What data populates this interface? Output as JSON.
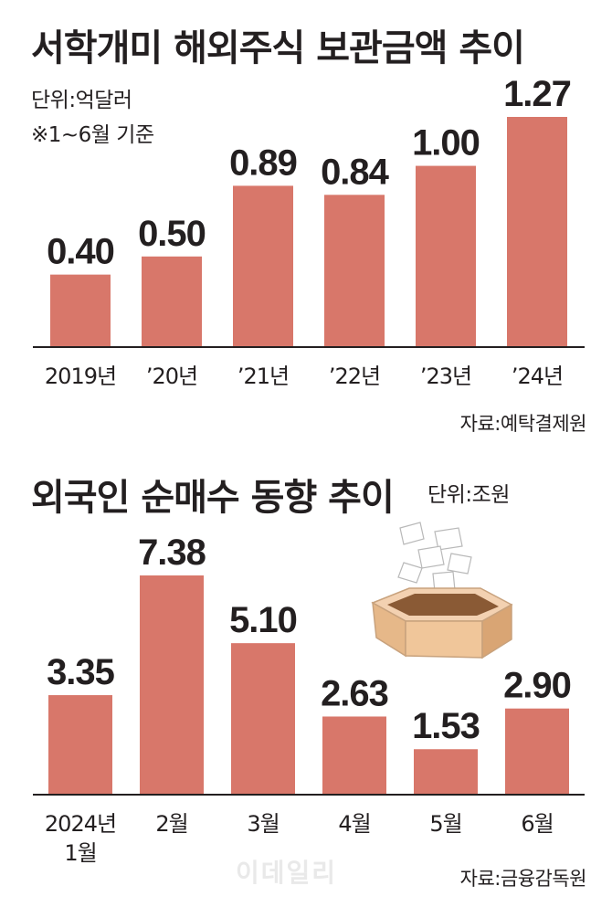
{
  "chart1": {
    "title": "서학개미 해외주식 보관금액 추이",
    "unit_note": "단위:억달러",
    "period_note": "※1~6월 기준",
    "source": "자료:예탁결제원"
  },
  "chart2": {
    "title": "외국인 순매수 동향 추이",
    "unit_note": "단위:조원",
    "source": "자료:금융감독원",
    "category_line2": [
      "1월",
      "",
      "",
      "",
      "",
      ""
    ]
  },
  "watermark": "이데일리",
  "colors": {
    "bar": "#d8776a",
    "text": "#231f20",
    "baseline": "#231f20"
  },
  "chart_data": [
    {
      "type": "bar",
      "categories": [
        "2019년",
        "’20년",
        "’21년",
        "’22년",
        "’23년",
        "’24년"
      ],
      "values": [
        0.4,
        0.5,
        0.89,
        0.84,
        1.0,
        1.27
      ],
      "value_labels": [
        "0.40",
        "0.50",
        "0.89",
        "0.84",
        "1.00",
        "1.27"
      ],
      "title": "서학개미 해외주식 보관금액 추이",
      "ylabel": "억달러",
      "ylim": [
        0,
        1.27
      ],
      "grid": false
    },
    {
      "type": "bar",
      "categories": [
        "2024년",
        "2월",
        "3월",
        "4월",
        "5월",
        "6월"
      ],
      "values": [
        3.35,
        7.38,
        5.1,
        2.63,
        1.53,
        2.9
      ],
      "value_labels": [
        "3.35",
        "7.38",
        "5.10",
        "2.63",
        "1.53",
        "2.90"
      ],
      "title": "외국인 순매수 동향 추이",
      "ylabel": "조원",
      "ylim": [
        0,
        7.38
      ],
      "grid": false
    }
  ]
}
